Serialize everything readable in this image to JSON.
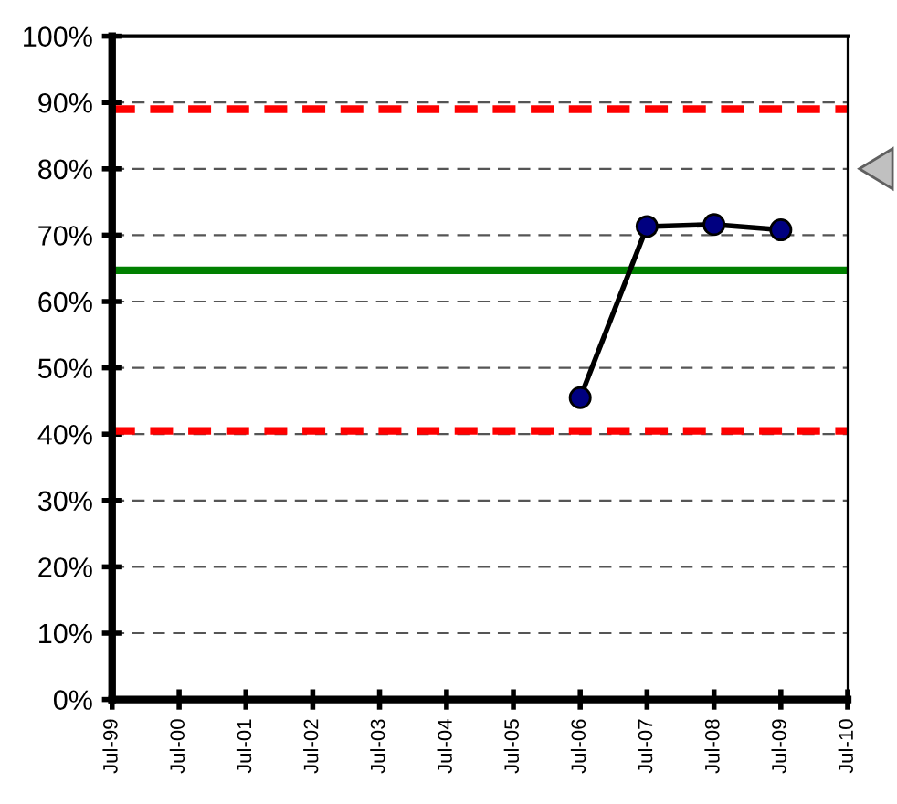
{
  "chart_data": {
    "type": "line",
    "x": [
      "2006-07",
      "2007-07",
      "2008-07",
      "2009-07"
    ],
    "series": [
      {
        "color": "#000080",
        "values": [
          45.5,
          71.3,
          71.6,
          70.8
        ]
      }
    ],
    "marker": "circle",
    "line_style": "solid",
    "grid": "y",
    "legend": false,
    "xlim": [
      "1999-07",
      "2010-07"
    ],
    "xticks": [
      {
        "value": "1999-07",
        "label": "Jul-99"
      },
      {
        "value": "2000-07",
        "label": "Jul-00"
      },
      {
        "value": "2001-07",
        "label": "Jul-01"
      },
      {
        "value": "2002-07",
        "label": "Jul-02"
      },
      {
        "value": "2003-07",
        "label": "Jul-03"
      },
      {
        "value": "2004-07",
        "label": "Jul-04"
      },
      {
        "value": "2005-07",
        "label": "Jul-05"
      },
      {
        "value": "2006-07",
        "label": "Jul-06"
      },
      {
        "value": "2007-07",
        "label": "Jul-07"
      },
      {
        "value": "2008-07",
        "label": "Jul-08"
      },
      {
        "value": "2009-07",
        "label": "Jul-09"
      },
      {
        "value": "2010-07",
        "label": "Jul-10"
      }
    ],
    "ylim": [
      0,
      100
    ],
    "yticks": [
      {
        "value": 0,
        "label": "0%"
      },
      {
        "value": 10,
        "label": "10%"
      },
      {
        "value": 20,
        "label": "20%"
      },
      {
        "value": 30,
        "label": "30%"
      },
      {
        "value": 40,
        "label": "40%"
      },
      {
        "value": 50,
        "label": "50%"
      },
      {
        "value": 60,
        "label": "60%"
      },
      {
        "value": 70,
        "label": "70%"
      },
      {
        "value": 80,
        "label": "80%"
      },
      {
        "value": 90,
        "label": "90%"
      },
      {
        "value": 100,
        "label": "100%"
      }
    ],
    "ref_lines": [
      {
        "axis": "y",
        "value": 89,
        "color": "#ff0000",
        "line_style": "dashed"
      },
      {
        "axis": "y",
        "value": 64.7,
        "color": "#008000",
        "line_style": "solid"
      },
      {
        "axis": "y",
        "value": 40.5,
        "color": "#ff0000",
        "line_style": "dashed"
      }
    ]
  }
}
